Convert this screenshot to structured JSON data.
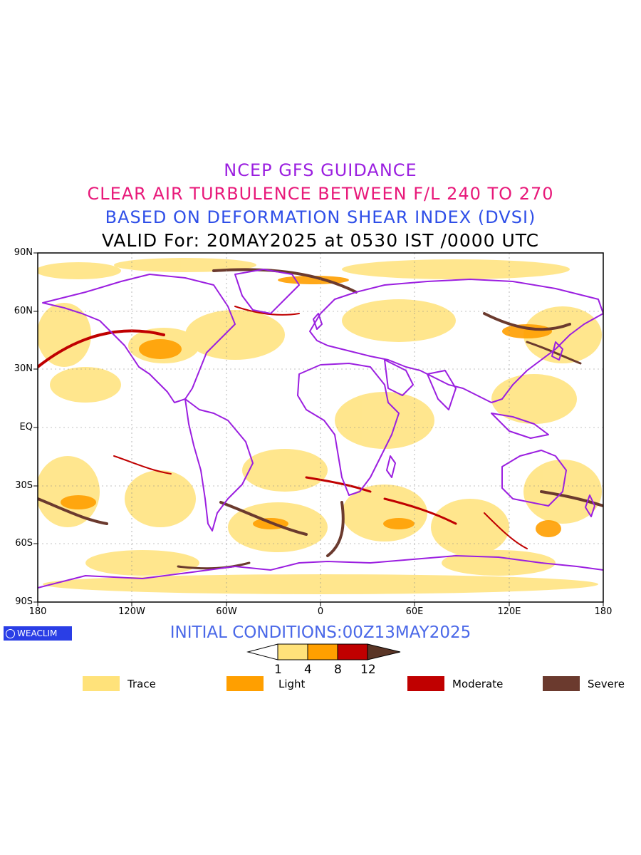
{
  "titles": {
    "line1": "NCEP GFS GUIDANCE",
    "line2": "CLEAR AIR TURBULENCE BETWEEN F/L 240 TO 270",
    "line3": "BASED ON DEFORMATION SHEAR INDEX (DVSI)",
    "line4": "VALID For: 20MAY2025 at 0530 IST /0000 UTC"
  },
  "axes": {
    "lat_labels": [
      "90N",
      "60N",
      "30N",
      "EQ",
      "30S",
      "60S",
      "90S"
    ],
    "lon_labels": [
      "180",
      "120W",
      "60W",
      "0",
      "60E",
      "120E",
      "180"
    ]
  },
  "logo": {
    "text": "WEACLIM"
  },
  "initial_conditions": "INITIAL CONDITIONS:00Z13MAY2025",
  "colorbar": {
    "levels": [
      "1",
      "4",
      "8",
      "12"
    ],
    "colors": [
      "#ffffff",
      "#ffe27a",
      "#ff9f00",
      "#c00000",
      "#5a3526"
    ]
  },
  "legend": [
    {
      "label": "Trace",
      "color": "#ffe27a"
    },
    {
      "label": "Light",
      "color": "#ff9f00"
    },
    {
      "label": "Moderate",
      "color": "#c00000"
    },
    {
      "label": "Severe",
      "color": "#6b3a2e"
    }
  ],
  "colors": {
    "coastline": "#9b1fe0",
    "title_line1": "#9b1fe0",
    "title_line2": "#e8197a",
    "title_line3": "#2f4fe8",
    "init_text": "#4a68e8"
  }
}
